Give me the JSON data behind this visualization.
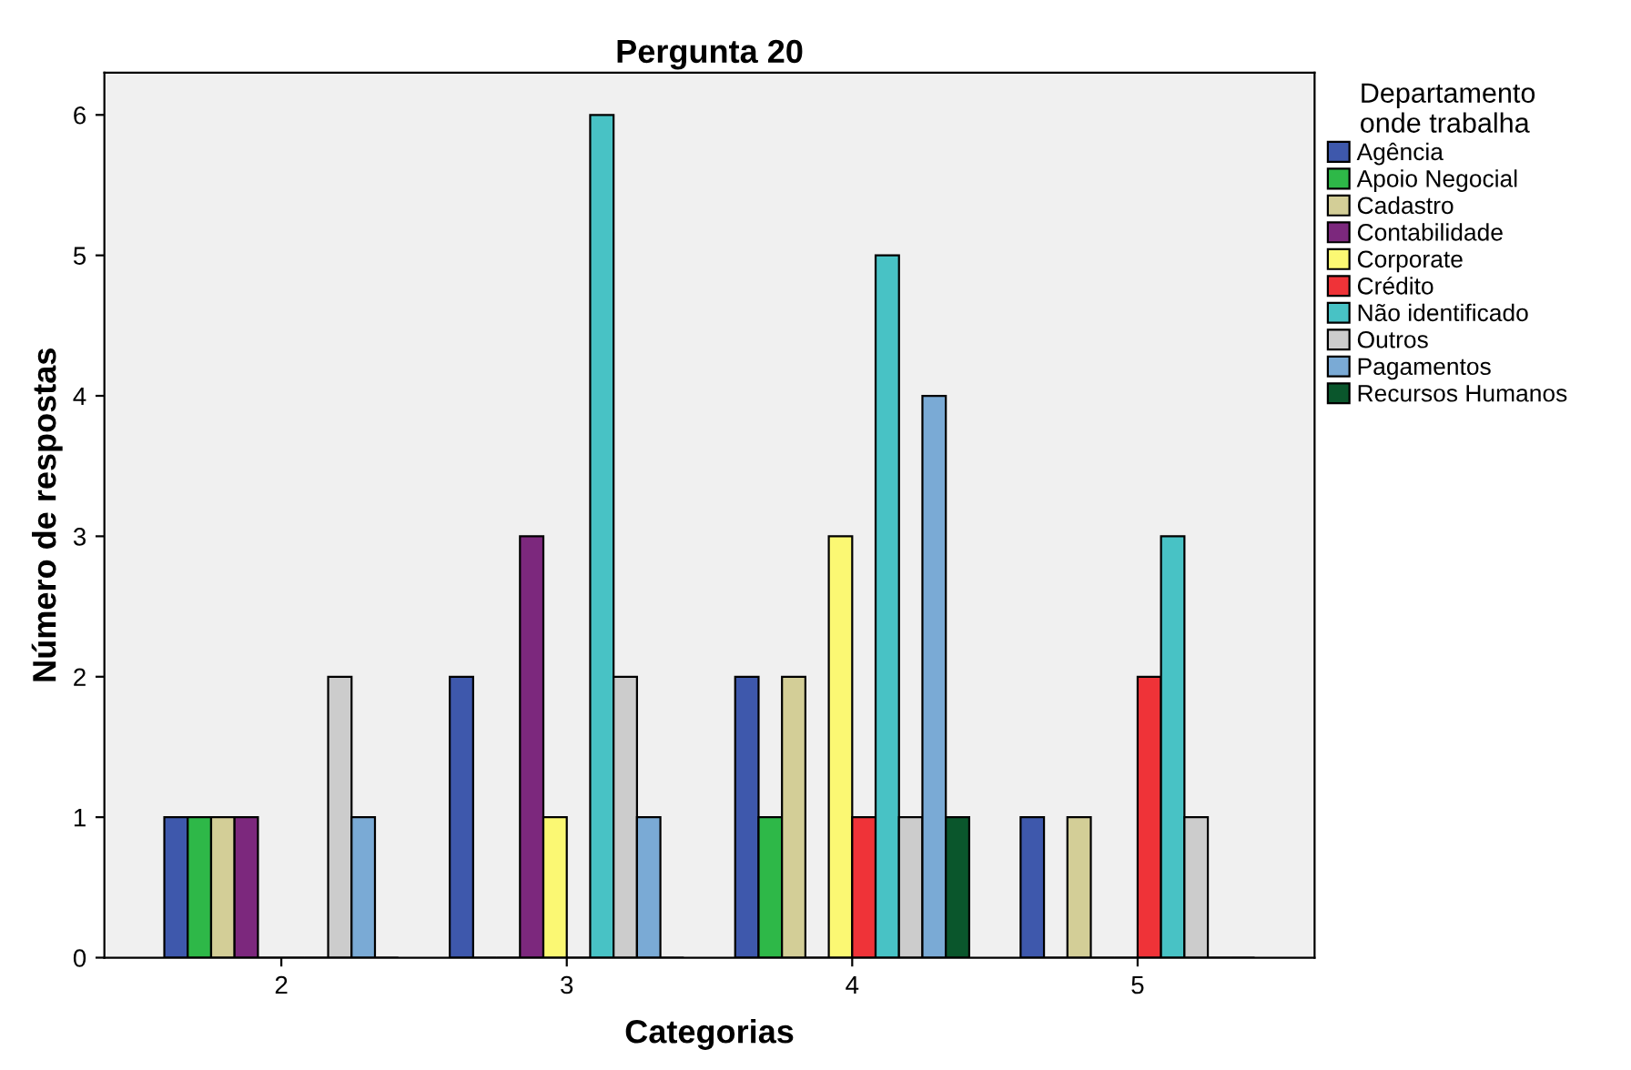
{
  "chart_data": {
    "type": "bar",
    "title": "Pergunta 20",
    "xlabel": "Categorias",
    "ylabel": "Número de respostas",
    "legend_title": "Departamento\nonde trabalha",
    "categories": [
      "2",
      "3",
      "4",
      "5"
    ],
    "series": [
      {
        "name": "Agência",
        "color": "#3e58ac",
        "values": [
          1,
          2,
          2,
          1
        ]
      },
      {
        "name": "Apoio Negocial",
        "color": "#2eb848",
        "values": [
          1,
          0,
          1,
          0
        ]
      },
      {
        "name": "Cadastro",
        "color": "#d3ce97",
        "values": [
          1,
          0,
          2,
          1
        ]
      },
      {
        "name": "Contabilidade",
        "color": "#7c287d",
        "values": [
          1,
          3,
          0,
          0
        ]
      },
      {
        "name": "Corporate",
        "color": "#fbf873",
        "values": [
          0,
          1,
          3,
          0
        ]
      },
      {
        "name": "Crédito",
        "color": "#ef3338",
        "values": [
          0,
          0,
          1,
          2
        ]
      },
      {
        "name": "Não identificado",
        "color": "#48c2c5",
        "values": [
          0,
          6,
          5,
          3
        ]
      },
      {
        "name": "Outros",
        "color": "#cccccc",
        "values": [
          2,
          2,
          1,
          1
        ]
      },
      {
        "name": "Pagamentos",
        "color": "#7aaad5",
        "values": [
          1,
          1,
          4,
          0
        ]
      },
      {
        "name": "Recursos Humanos",
        "color": "#0a562c",
        "values": [
          0,
          0,
          1,
          0
        ]
      }
    ],
    "ylim": [
      0,
      6.3
    ],
    "yticks": [
      0,
      1,
      2,
      3,
      4,
      5,
      6
    ],
    "grid": false,
    "legend": "right"
  }
}
